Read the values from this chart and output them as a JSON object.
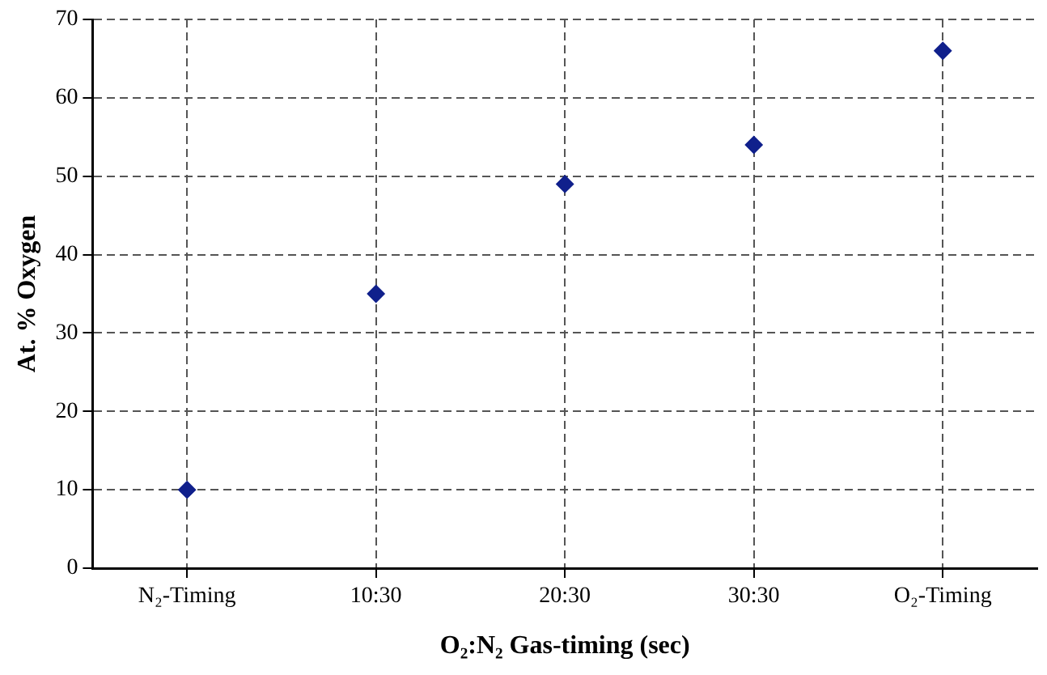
{
  "chart_data": {
    "type": "scatter",
    "xlabel": "O₂:N₂ Gas-timing (sec)",
    "ylabel": "At. % Oxygen",
    "categories": [
      "N₂-Timing",
      "10:30",
      "20:30",
      "30:30",
      "O₂-Timing"
    ],
    "series": [
      {
        "color": "#10208c",
        "values": [
          10,
          35,
          49,
          54,
          66
        ]
      }
    ],
    "ylim": [
      0,
      70
    ],
    "yticks": [
      0,
      10,
      20,
      30,
      40,
      50,
      60,
      70
    ],
    "grid": true,
    "legend": false,
    "marker": "diamond"
  }
}
